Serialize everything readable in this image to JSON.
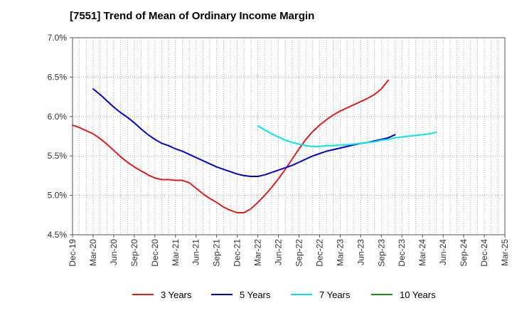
{
  "chart_data": {
    "type": "line",
    "title": "[7551]  Trend of Mean of Ordinary Income Margin",
    "xlabel": "",
    "ylabel": "",
    "ylim": [
      4.5,
      7.0
    ],
    "y_ticks": [
      "7.0%",
      "6.5%",
      "6.0%",
      "5.5%",
      "5.0%",
      "4.5%"
    ],
    "y_tick_values": [
      7.0,
      6.5,
      6.0,
      5.5,
      5.0,
      4.5
    ],
    "x_tick_labels": [
      "Dec-19",
      "Mar-20",
      "Jun-20",
      "Sep-20",
      "Dec-20",
      "Mar-21",
      "Jun-21",
      "Sep-21",
      "Dec-21",
      "Mar-22",
      "Jun-22",
      "Sep-22",
      "Dec-22",
      "Mar-23",
      "Jun-23",
      "Sep-23",
      "Dec-23",
      "Mar-24",
      "Jun-24",
      "Sep-24",
      "Dec-24",
      "Mar-25"
    ],
    "grid": true,
    "legend_position": "bottom",
    "series": [
      {
        "name": "3 Years",
        "color": "#e31a1c",
        "start": "Dec-19",
        "values": [
          5.89,
          5.86,
          5.82,
          5.78,
          5.72,
          5.65,
          5.57,
          5.49,
          5.42,
          5.36,
          5.31,
          5.26,
          5.22,
          5.2,
          5.2,
          5.19,
          5.19,
          5.16,
          5.09,
          5.02,
          4.96,
          4.91,
          4.85,
          4.81,
          4.78,
          4.78,
          4.83,
          4.91,
          5.0,
          5.1,
          5.21,
          5.33,
          5.46,
          5.59,
          5.71,
          5.81,
          5.89,
          5.96,
          6.02,
          6.07,
          6.11,
          6.15,
          6.19,
          6.23,
          6.28,
          6.35,
          6.46
        ]
      },
      {
        "name": "5 Years",
        "color": "#0000cc",
        "start": "Mar-20",
        "values": [
          6.35,
          6.28,
          6.2,
          6.12,
          6.05,
          5.99,
          5.92,
          5.84,
          5.77,
          5.71,
          5.66,
          5.63,
          5.59,
          5.56,
          5.52,
          5.48,
          5.44,
          5.4,
          5.36,
          5.33,
          5.3,
          5.27,
          5.25,
          5.24,
          5.24,
          5.26,
          5.29,
          5.32,
          5.35,
          5.38,
          5.42,
          5.46,
          5.5,
          5.53,
          5.56,
          5.58,
          5.6,
          5.62,
          5.64,
          5.66,
          5.67,
          5.69,
          5.71,
          5.73,
          5.77
        ]
      },
      {
        "name": "7 Years",
        "color": "#00e5ee",
        "start": "Mar-22",
        "values": [
          5.88,
          5.83,
          5.78,
          5.74,
          5.7,
          5.67,
          5.65,
          5.63,
          5.62,
          5.62,
          5.63,
          5.63,
          5.64,
          5.64,
          5.65,
          5.66,
          5.67,
          5.68,
          5.7,
          5.71,
          5.73,
          5.74,
          5.75,
          5.76,
          5.77,
          5.78,
          5.8
        ]
      },
      {
        "name": "10 Years",
        "color": "#1a8c1a",
        "start": "Mar-25",
        "values": []
      }
    ]
  }
}
